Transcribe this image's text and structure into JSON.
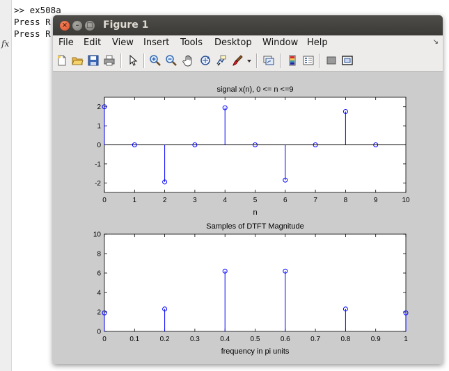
{
  "console": {
    "lines": [
      ">> ex508a",
      "Press R",
      "Press R"
    ],
    "fx_symbol": "fx"
  },
  "window": {
    "title": "Figure 1",
    "close_glyph": "×",
    "min_glyph": "–",
    "max_glyph": "□"
  },
  "menubar": {
    "items": [
      "File",
      "Edit",
      "View",
      "Insert",
      "Tools",
      "Desktop",
      "Window",
      "Help"
    ],
    "overflow_arrow": "↘"
  },
  "toolbar": {
    "icons": [
      "new-figure-icon",
      "open-file-icon",
      "save-icon",
      "print-icon",
      "pointer-icon",
      "zoom-in-icon",
      "zoom-out-icon",
      "pan-hand-icon",
      "rotate-3d-icon",
      "data-cursor-icon",
      "brush-icon",
      "brush-dropdown-icon",
      "link-plot-icon",
      "colorbar-icon",
      "legend-icon",
      "hide-plot-tools-icon",
      "show-plot-tools-icon"
    ]
  },
  "chart_data": [
    {
      "type": "stem",
      "title": "signal x(n), 0 <= n <=9",
      "xlabel": "n",
      "ylabel": "",
      "x": [
        0,
        1,
        2,
        3,
        4,
        5,
        6,
        7,
        8,
        9
      ],
      "y": [
        2.0,
        0.0,
        -1.95,
        0.0,
        1.95,
        0.0,
        -1.85,
        0.0,
        1.75,
        0.0
      ],
      "xlim": [
        0,
        10
      ],
      "ylim": [
        -2.5,
        2.5
      ],
      "xticks": [
        "0",
        "1",
        "2",
        "3",
        "4",
        "5",
        "6",
        "7",
        "8",
        "9",
        "10"
      ],
      "yticks": [
        "-2",
        "-1",
        "0",
        "1",
        "2"
      ],
      "grid": false,
      "color": "#0000ff"
    },
    {
      "type": "stem",
      "title": "Samples of DTFT Magnitude",
      "xlabel": "frequency in pi units",
      "ylabel": "",
      "x": [
        0,
        0.2,
        0.4,
        0.6,
        0.8,
        1.0
      ],
      "y": [
        1.9,
        2.3,
        6.2,
        6.2,
        2.3,
        1.9
      ],
      "xlim": [
        0,
        1
      ],
      "ylim": [
        0,
        10
      ],
      "xticks": [
        "0",
        "0.1",
        "0.2",
        "0.3",
        "0.4",
        "0.5",
        "0.6",
        "0.7",
        "0.8",
        "0.9",
        "1"
      ],
      "yticks": [
        "0",
        "2",
        "4",
        "6",
        "8",
        "10"
      ],
      "grid": false,
      "color": "#0000ff"
    }
  ]
}
